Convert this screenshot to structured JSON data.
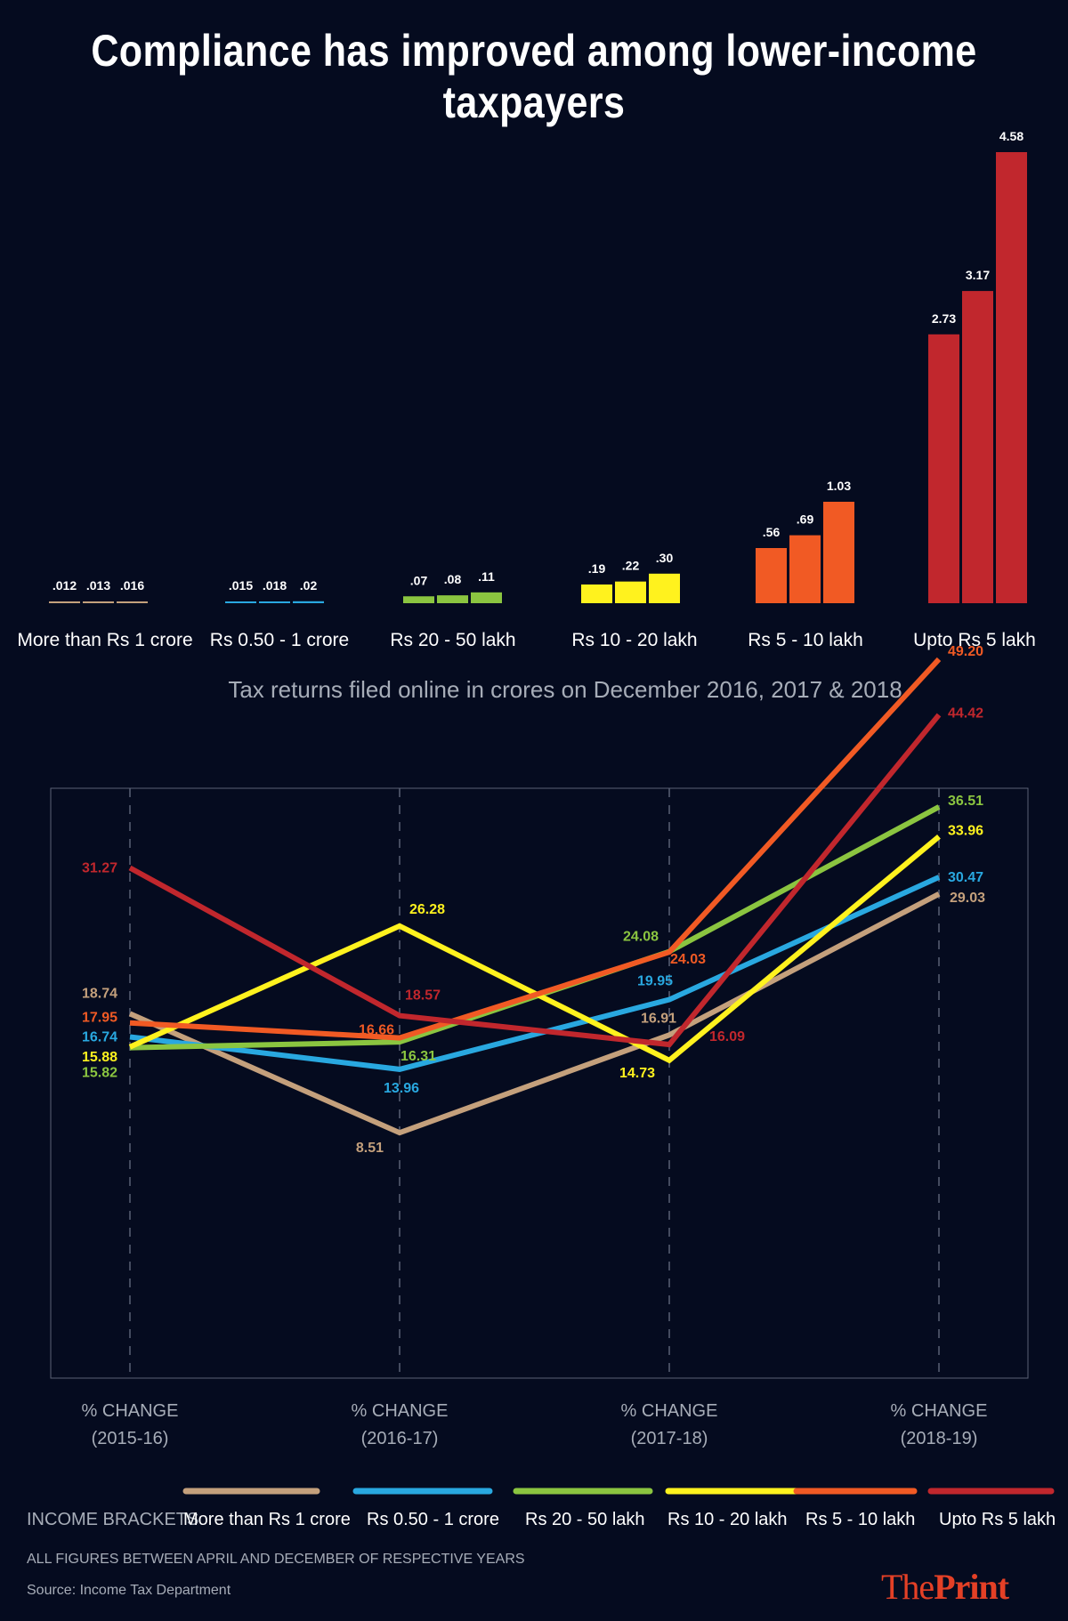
{
  "title": "Compliance has improved among lower-income taxpayers",
  "colors": {
    "background": "#050b1f",
    "brand": "#e44026",
    "grid": "#5a6175"
  },
  "chart_data": [
    {
      "type": "bar",
      "title": "Tax returns filed online in crores on December 2016, 2017 & 2018",
      "categories": [
        "More than Rs 1 crore",
        "Rs 0.50 - 1 crore",
        "Rs 20 - 50 lakh",
        "Rs 10 - 20 lakh",
        "Rs 5 - 10 lakh",
        "Upto Rs 5 lakh"
      ],
      "colors": [
        "#c4a07c",
        "#29a8e0",
        "#8bc540",
        "#fff21e",
        "#f15a24",
        "#c1272d"
      ],
      "values": [
        [
          0.012,
          0.013,
          0.016
        ],
        [
          0.015,
          0.018,
          0.02
        ],
        [
          0.07,
          0.08,
          0.11
        ],
        [
          0.19,
          0.22,
          0.3
        ],
        [
          0.56,
          0.69,
          1.03
        ],
        [
          2.73,
          3.17,
          4.58
        ]
      ],
      "labels": [
        [
          ".012",
          ".013",
          ".016"
        ],
        [
          ".015",
          ".018",
          ".02"
        ],
        [
          ".07",
          ".08",
          ".11"
        ],
        [
          ".19",
          ".22",
          ".30"
        ],
        [
          ".56",
          ".69",
          "1.03"
        ],
        [
          "2.73",
          "3.17",
          "4.58"
        ]
      ]
    },
    {
      "type": "line",
      "x": [
        "% CHANGE\n(2015-16)",
        "% CHANGE\n(2016-17)",
        "% CHANGE\n(2017-18)",
        "% CHANGE\n(2018-19)"
      ],
      "ylim": [
        0,
        55
      ],
      "grid": true,
      "series": [
        {
          "name": "More than Rs 1 crore",
          "color": "#c4a07c",
          "values": [
            18.74,
            8.51,
            16.91,
            29.03
          ],
          "labels": [
            "18.74",
            "8.51",
            "16.91",
            "29.03"
          ]
        },
        {
          "name": "Rs 0.50 - 1 crore",
          "color": "#29a8e0",
          "values": [
            16.74,
            13.96,
            19.95,
            30.47
          ],
          "labels": [
            "16.74",
            "13.96",
            "19.95",
            "30.47"
          ]
        },
        {
          "name": "Rs 20 - 50 lakh",
          "color": "#8bc540",
          "values": [
            15.82,
            16.31,
            24.08,
            36.51
          ],
          "labels": [
            "15.82",
            "16.31",
            "24.08",
            "36.51"
          ]
        },
        {
          "name": "Rs 10 - 20 lakh",
          "color": "#fff21e",
          "values": [
            15.88,
            26.28,
            14.73,
            33.96
          ],
          "labels": [
            "15.88",
            "26.28",
            "14.73",
            "33.96"
          ]
        },
        {
          "name": "Rs 5 - 10 lakh",
          "color": "#f15a24",
          "values": [
            17.95,
            16.66,
            24.03,
            49.2
          ],
          "labels": [
            "17.95",
            "16.66",
            "24.03",
            "49.20"
          ]
        },
        {
          "name": "Upto Rs 5 lakh",
          "color": "#c1272d",
          "values": [
            31.27,
            18.57,
            16.09,
            44.42
          ],
          "labels": [
            "31.27",
            "18.57",
            "16.09",
            "44.42"
          ]
        }
      ]
    }
  ],
  "legend": {
    "title": "INCOME BRACKETS",
    "items": [
      "More than Rs 1 crore",
      "Rs 0.50 - 1 crore",
      "Rs 20 - 50 lakh",
      "Rs 10 - 20 lakh",
      "Rs 5 - 10 lakh",
      "Upto Rs 5 lakh"
    ]
  },
  "note": "ALL FIGURES BETWEEN APRIL AND DECEMBER OF RESPECTIVE YEARS",
  "source": "Source: Income Tax Department",
  "brand": {
    "part1": "The",
    "part2": "Print"
  }
}
